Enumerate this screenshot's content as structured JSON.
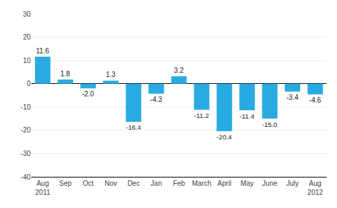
{
  "chart_data": {
    "type": "bar",
    "categories": [
      "Aug\n2011",
      "Sep",
      "Oct",
      "Nov",
      "Dec",
      "Jan",
      "Feb",
      "March",
      "April",
      "May",
      "June",
      "July",
      "Aug\n2012"
    ],
    "values": [
      11.6,
      1.8,
      -2.0,
      1.3,
      -16.4,
      -4.3,
      3.2,
      -11.2,
      -20.4,
      -11.4,
      -15.0,
      -3.4,
      -4.6
    ],
    "value_labels": [
      "11.6",
      "1.8",
      "-2.0",
      "1.3",
      "-16.4",
      "-4.3",
      "3.2",
      "-11.2",
      "-20.4",
      "-11.4",
      "-15.0",
      "-3.4",
      "-4.6"
    ],
    "color": "#29abe2",
    "ylim": [
      -40,
      30
    ],
    "yticks": [
      -40,
      -30,
      -20,
      -10,
      0,
      10,
      20,
      30
    ],
    "grid": true,
    "data_labels": true
  }
}
